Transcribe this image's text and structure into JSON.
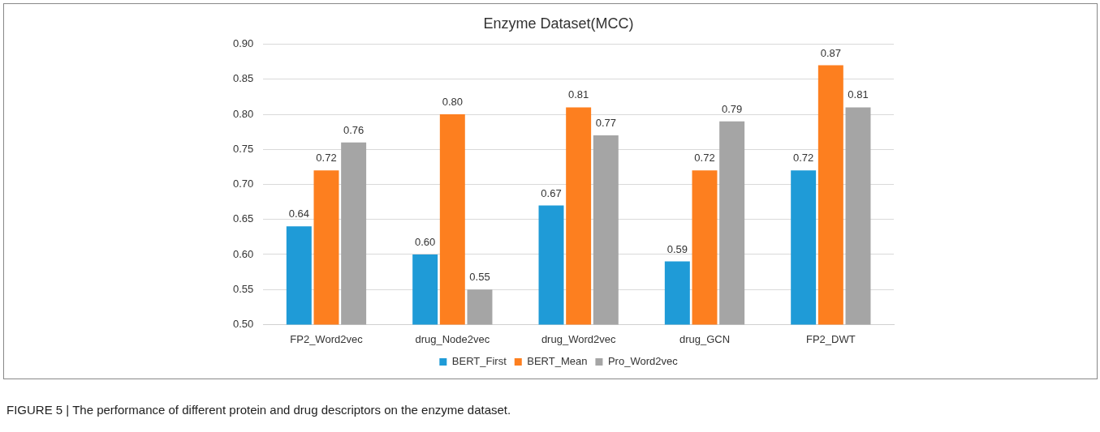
{
  "chart_data": {
    "type": "bar",
    "title": "Enzyme Dataset(MCC)",
    "categories": [
      "FP2_Word2vec",
      "drug_Node2vec",
      "drug_Word2vec",
      "drug_GCN",
      "FP2_DWT"
    ],
    "series": [
      {
        "name": "BERT_First",
        "color": "#1f9bd7",
        "values": [
          0.64,
          0.6,
          0.67,
          0.59,
          0.72
        ],
        "value_labels": [
          "0.64",
          "0.60",
          "0.67",
          "0.59",
          "0.72"
        ]
      },
      {
        "name": "BERT_Mean",
        "color": "#fd7f1f",
        "values": [
          0.72,
          0.8,
          0.81,
          0.72,
          0.87
        ],
        "value_labels": [
          "0.72",
          "0.80",
          "0.81",
          "0.72",
          "0.87"
        ]
      },
      {
        "name": "Pro_Word2vec",
        "color": "#a5a5a5",
        "values": [
          0.76,
          0.55,
          0.77,
          0.79,
          0.81
        ],
        "value_labels": [
          "0.76",
          "0.55",
          "0.77",
          "0.79",
          "0.81"
        ]
      }
    ],
    "ylim": [
      0.5,
      0.9
    ],
    "yticks": [
      {
        "value": 0.5,
        "label": "0.50"
      },
      {
        "value": 0.55,
        "label": "0.55"
      },
      {
        "value": 0.6,
        "label": "0.60"
      },
      {
        "value": 0.65,
        "label": "0.65"
      },
      {
        "value": 0.7,
        "label": "0.70"
      },
      {
        "value": 0.75,
        "label": "0.75"
      },
      {
        "value": 0.8,
        "label": "0.80"
      },
      {
        "value": 0.85,
        "label": "0.85"
      },
      {
        "value": 0.9,
        "label": "0.90"
      }
    ],
    "grid": "y",
    "legend": "bottom",
    "annotations": [
      "FIGURE 5 | The performance of different protein and drug descriptors on the enzyme dataset."
    ]
  }
}
